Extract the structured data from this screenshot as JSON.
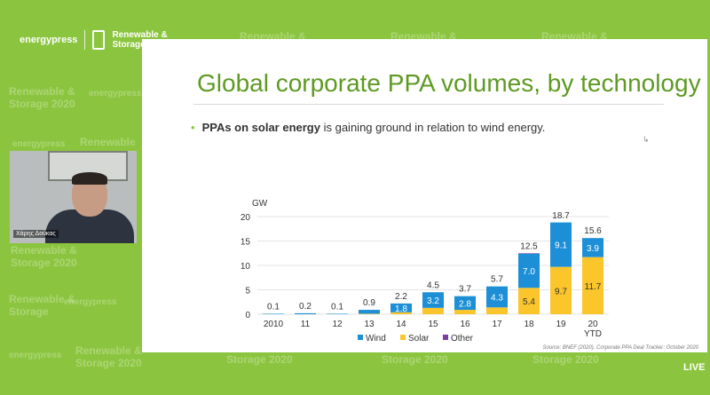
{
  "overlay": {
    "logo_energypress": "energypress",
    "logo_renewable": "Renewable &",
    "logo_storage": "Storage",
    "presenter_name": "Χάρης Δούκας",
    "live_label": "LIVE"
  },
  "slide": {
    "title": "Global corporate PPA volumes, by technology",
    "bullet_bold": "PPAs on solar energy",
    "bullet_rest": " is gaining ground in relation to wind energy.",
    "source": "Source: BNEF (2020). Corporate PPA Deal Tracker: October 2020"
  },
  "colors": {
    "wind": "#1c8fd6",
    "solar": "#fbc52c",
    "other": "#7b3fa0",
    "green": "#8bc53f"
  },
  "chart_data": {
    "type": "bar",
    "stacked": true,
    "unit_label": "GW",
    "categories": [
      "2010",
      "11",
      "12",
      "13",
      "14",
      "15",
      "16",
      "17",
      "18",
      "19",
      "20 YTD"
    ],
    "series": [
      {
        "name": "Wind",
        "values": [
          0.1,
          0.2,
          0.1,
          0.8,
          1.8,
          3.2,
          2.8,
          4.3,
          7.0,
          9.1,
          3.9
        ]
      },
      {
        "name": "Solar",
        "values": [
          0.0,
          0.0,
          0.0,
          0.1,
          0.4,
          1.3,
          0.9,
          1.4,
          5.4,
          9.7,
          11.7
        ]
      },
      {
        "name": "Other",
        "values": [
          0,
          0,
          0,
          0,
          0,
          0,
          0,
          0,
          0.1,
          0,
          0
        ]
      }
    ],
    "totals": [
      0.1,
      0.2,
      0.1,
      0.9,
      2.2,
      4.5,
      3.7,
      5.7,
      12.5,
      18.7,
      15.6
    ],
    "wind_labels": [
      "",
      "",
      "",
      "",
      "1.8",
      "3.2",
      "2.8",
      "4.3",
      "7.0",
      "9.1",
      "3.9"
    ],
    "solar_labels": [
      "",
      "",
      "",
      "",
      "",
      "",
      "",
      "",
      "5.4",
      "9.7",
      "11.7"
    ],
    "y_ticks": [
      0,
      5,
      10,
      15,
      20
    ],
    "ylim": [
      0,
      20
    ],
    "grid": true,
    "legend_position": "bottom"
  }
}
